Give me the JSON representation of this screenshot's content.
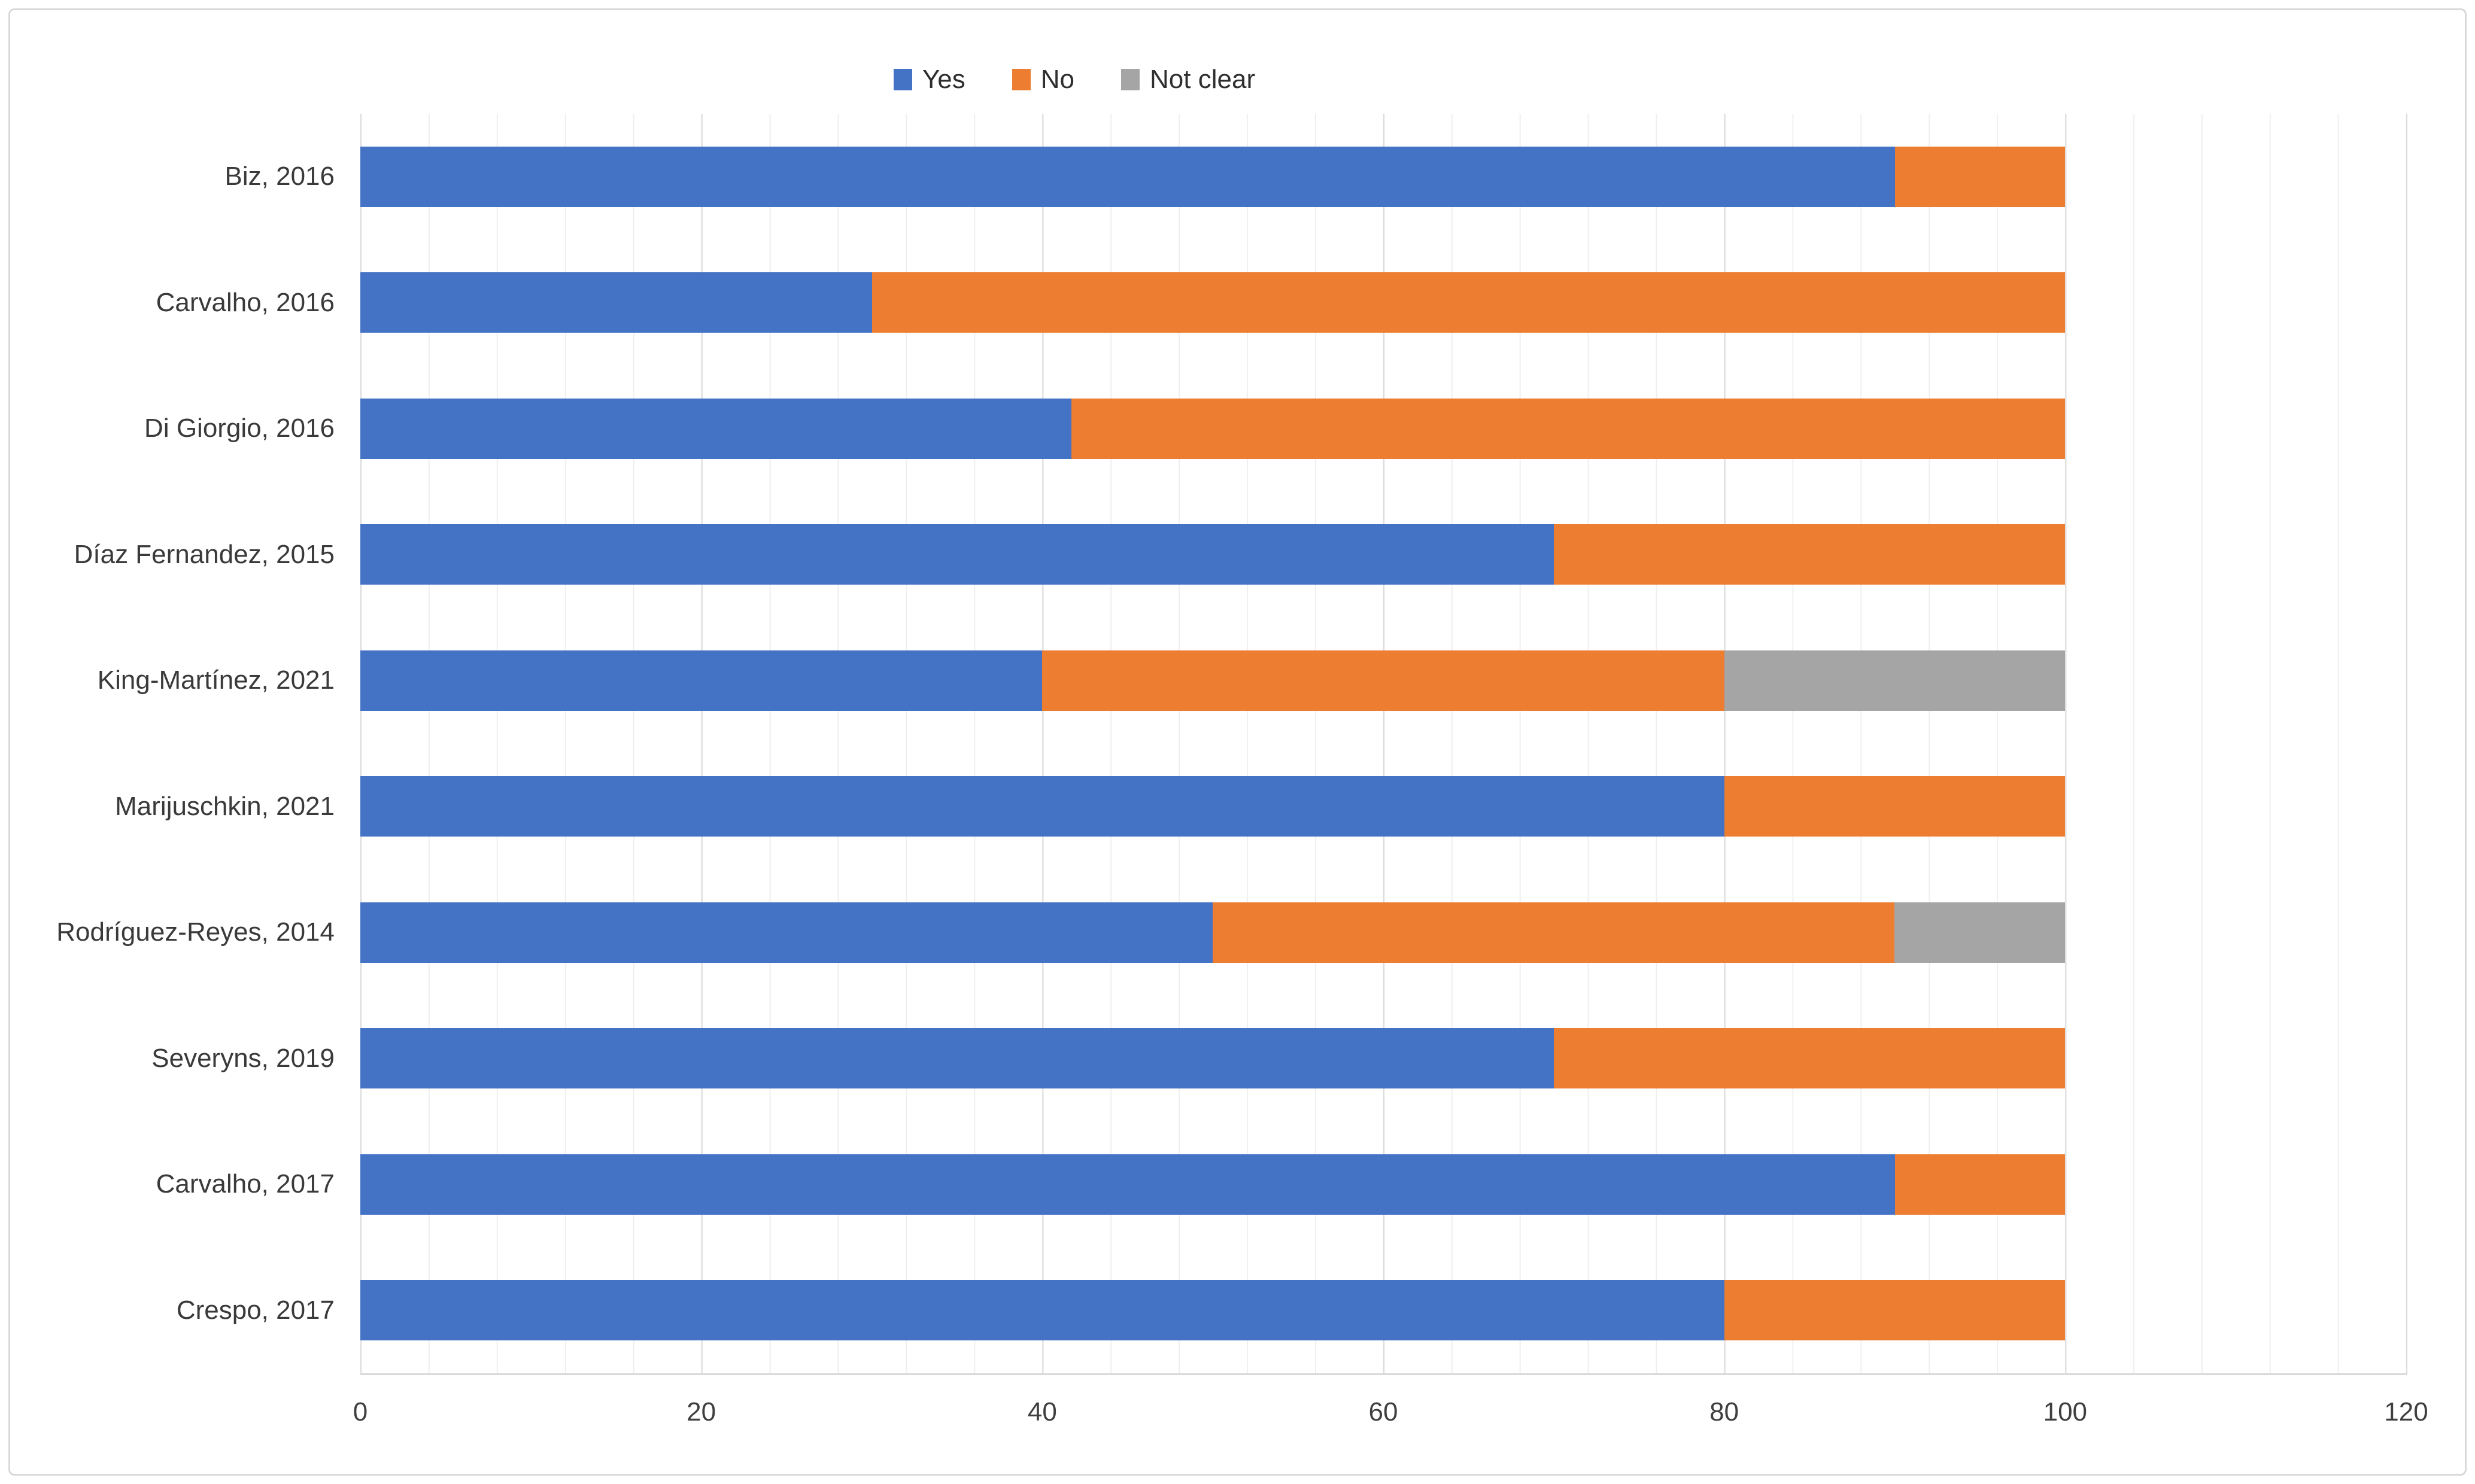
{
  "chart_data": {
    "type": "bar",
    "orientation": "horizontal",
    "stacked": true,
    "title": "",
    "xlabel": "",
    "ylabel": "",
    "categories": [
      "Biz, 2016",
      "Carvalho, 2016",
      "Di Giorgio, 2016",
      "Díaz Fernandez, 2015",
      "King-Martínez, 2021",
      "Marijuschkin, 2021",
      "Rodríguez-Reyes, 2014",
      "Severyns, 2019",
      "Carvalho, 2017",
      "Crespo, 2017"
    ],
    "series": [
      {
        "name": "Yes",
        "color": "#4472C4",
        "values": [
          90,
          30,
          41.7,
          70,
          40,
          80,
          50,
          70,
          90,
          80
        ]
      },
      {
        "name": "No",
        "color": "#ED7D31",
        "values": [
          10,
          70,
          58.3,
          30,
          40,
          20,
          40,
          30,
          10,
          20
        ]
      },
      {
        "name": "Not clear",
        "color": "#A5A5A5",
        "values": [
          0,
          0,
          0,
          0,
          20,
          0,
          10,
          0,
          0,
          0
        ]
      }
    ],
    "xlim": [
      0,
      120
    ],
    "x_ticks": [
      0,
      20,
      40,
      60,
      80,
      100,
      120
    ],
    "minor_grid_unit": 4,
    "grid": true,
    "legend_position": "top-center",
    "colors": {
      "major_gridline": "#dcdcdc",
      "minor_gridline": "#efefef",
      "axis_line": "#c3c3c3",
      "frame_border": "#d9d9d9",
      "text": "#3a3a3a",
      "background": "#ffffff"
    }
  }
}
